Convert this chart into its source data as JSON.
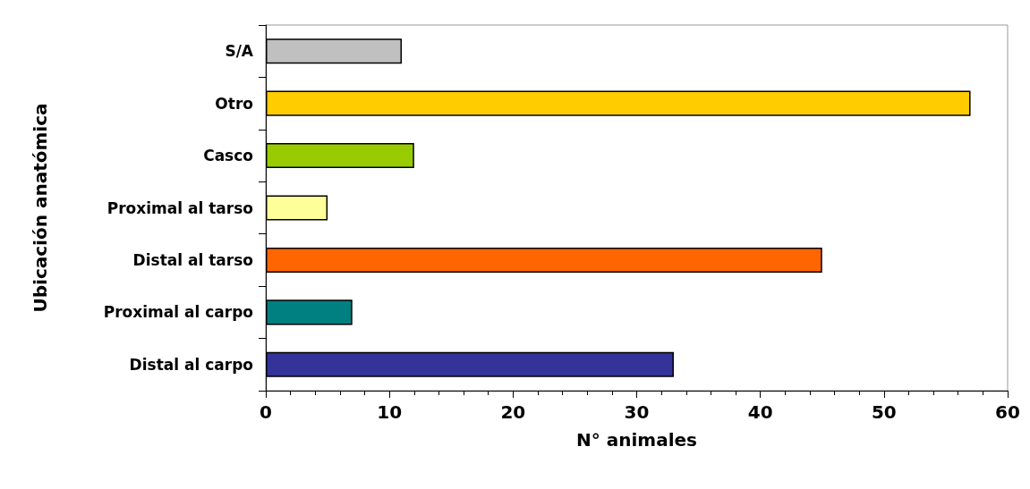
{
  "chart_data": {
    "type": "bar",
    "orientation": "horizontal",
    "xlabel": "N° animales",
    "ylabel": "Ubicación anatómica",
    "categories": [
      "S/A",
      "Otro",
      "Casco",
      "Proximal al tarso",
      "Distal al tarso",
      "Proximal al carpo",
      "Distal al carpo"
    ],
    "values": [
      11,
      57,
      12,
      5,
      45,
      7,
      33
    ],
    "colors": [
      "#c0c0c0",
      "#ffcc00",
      "#99cc00",
      "#ffff99",
      "#ff6600",
      "#008080",
      "#333399"
    ],
    "xlim": [
      0,
      60
    ],
    "xticks": [
      0,
      10,
      20,
      30,
      40,
      50,
      60
    ],
    "grid": false
  }
}
